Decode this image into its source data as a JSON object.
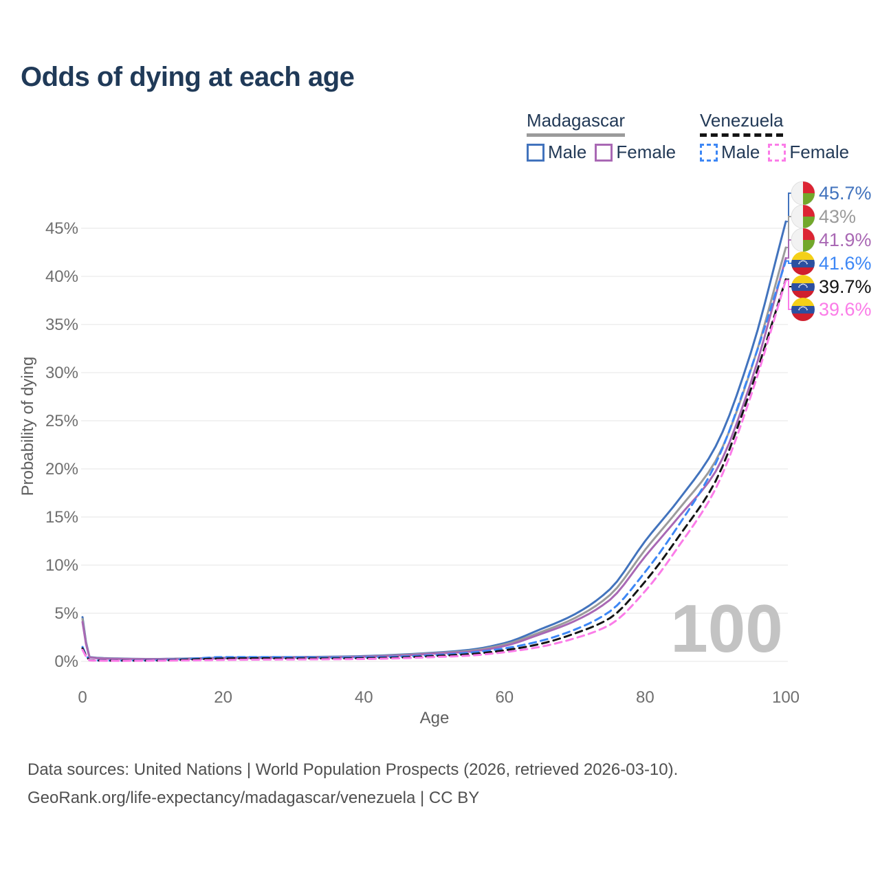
{
  "title": "Odds of dying at each age",
  "legend": {
    "groups": [
      {
        "country": "Madagascar",
        "line_style": "solid",
        "line_color": "#9b9b9b",
        "items": [
          {
            "label": "Male",
            "color": "#4273bd"
          },
          {
            "label": "Female",
            "color": "#a968b4"
          }
        ]
      },
      {
        "country": "Venezuela",
        "line_style": "dashed",
        "line_color": "#141414",
        "items": [
          {
            "label": "Male",
            "color": "#3d87f5"
          },
          {
            "label": "Female",
            "color": "#fb7ce8"
          }
        ]
      }
    ]
  },
  "end_labels": [
    {
      "value": "45.7%",
      "flag": "madagascar",
      "color": "#4273bd"
    },
    {
      "value": "43%",
      "flag": "madagascar",
      "color": "#9b9b9b"
    },
    {
      "value": "41.9%",
      "flag": "madagascar",
      "color": "#a968b4"
    },
    {
      "value": "41.6%",
      "flag": "venezuela",
      "color": "#3d87f5"
    },
    {
      "value": "39.7%",
      "flag": "venezuela",
      "color": "#141414"
    },
    {
      "value": "39.6%",
      "flag": "venezuela",
      "color": "#fb7ce8"
    }
  ],
  "watermark": "100",
  "footer": {
    "line1": "Data sources: United Nations | World Population Prospects (2026, retrieved 2026-03-10).",
    "line2": "GeoRank.org/life-expectancy/madagascar/venezuela | CC BY"
  },
  "chart_data": {
    "type": "line",
    "title": "Odds of dying at each age",
    "xlabel": "Age",
    "ylabel": "Probability of dying",
    "xlim": [
      0,
      100
    ],
    "ylim": [
      0,
      47
    ],
    "grid": "horizontal",
    "xticks": [
      0,
      20,
      40,
      60,
      80,
      100
    ],
    "yticks_pct": [
      0,
      5,
      10,
      15,
      20,
      25,
      30,
      35,
      40,
      45
    ],
    "x": [
      0,
      1,
      5,
      10,
      15,
      20,
      25,
      30,
      35,
      40,
      45,
      50,
      55,
      60,
      65,
      70,
      75,
      80,
      85,
      90,
      95,
      100
    ],
    "series": [
      {
        "name": "Madagascar Male",
        "country": "Madagascar",
        "sex": "Male",
        "style": "solid",
        "color": "#4273bd",
        "end_value_pct": 45.7,
        "end_label": "45.7%",
        "values": [
          4.6,
          0.45,
          0.3,
          0.25,
          0.3,
          0.38,
          0.42,
          0.45,
          0.48,
          0.55,
          0.7,
          0.9,
          1.2,
          1.9,
          3.3,
          4.9,
          7.5,
          12.5,
          17.0,
          22.3,
          32.0,
          45.7
        ]
      },
      {
        "name": "Madagascar Both sexes",
        "country": "Madagascar",
        "sex": "Both",
        "style": "solid",
        "color": "#9b9b9b",
        "end_value_pct": 43.0,
        "end_label": "43%",
        "values": [
          4.4,
          0.42,
          0.28,
          0.23,
          0.28,
          0.35,
          0.39,
          0.42,
          0.45,
          0.5,
          0.65,
          0.85,
          1.1,
          1.75,
          3.0,
          4.5,
          6.9,
          11.6,
          16.0,
          20.8,
          30.2,
          43.0
        ]
      },
      {
        "name": "Madagascar Female",
        "country": "Madagascar",
        "sex": "Female",
        "style": "solid",
        "color": "#a968b4",
        "end_value_pct": 41.9,
        "end_label": "41.9%",
        "values": [
          4.1,
          0.4,
          0.26,
          0.22,
          0.25,
          0.32,
          0.36,
          0.4,
          0.42,
          0.48,
          0.6,
          0.8,
          1.0,
          1.6,
          2.8,
          4.2,
          6.4,
          10.9,
          15.2,
          19.7,
          28.9,
          41.9
        ]
      },
      {
        "name": "Venezuela Male",
        "country": "Venezuela",
        "sex": "Male",
        "style": "dashed",
        "color": "#3d87f5",
        "end_value_pct": 41.6,
        "end_label": "41.6%",
        "values": [
          1.5,
          0.12,
          0.08,
          0.1,
          0.25,
          0.45,
          0.45,
          0.42,
          0.4,
          0.42,
          0.5,
          0.65,
          0.9,
          1.35,
          2.1,
          3.3,
          5.2,
          9.3,
          14.4,
          20.5,
          30.3,
          41.6
        ]
      },
      {
        "name": "Venezuela Both sexes",
        "country": "Venezuela",
        "sex": "Both",
        "style": "dashed",
        "color": "#141414",
        "end_value_pct": 39.7,
        "end_label": "39.7%",
        "values": [
          1.35,
          0.11,
          0.07,
          0.08,
          0.18,
          0.3,
          0.32,
          0.3,
          0.3,
          0.33,
          0.4,
          0.55,
          0.75,
          1.15,
          1.8,
          2.9,
          4.5,
          8.3,
          13.2,
          18.7,
          28.2,
          39.7
        ]
      },
      {
        "name": "Venezuela Female",
        "country": "Venezuela",
        "sex": "Female",
        "style": "dashed",
        "color": "#fb7ce8",
        "end_value_pct": 39.6,
        "end_label": "39.6%",
        "values": [
          1.2,
          0.1,
          0.06,
          0.07,
          0.1,
          0.15,
          0.18,
          0.2,
          0.22,
          0.25,
          0.32,
          0.45,
          0.6,
          0.95,
          1.5,
          2.4,
          3.8,
          7.3,
          12.2,
          17.9,
          27.5,
          39.6
        ]
      }
    ],
    "legend_position": "top-right",
    "watermark": "100"
  }
}
